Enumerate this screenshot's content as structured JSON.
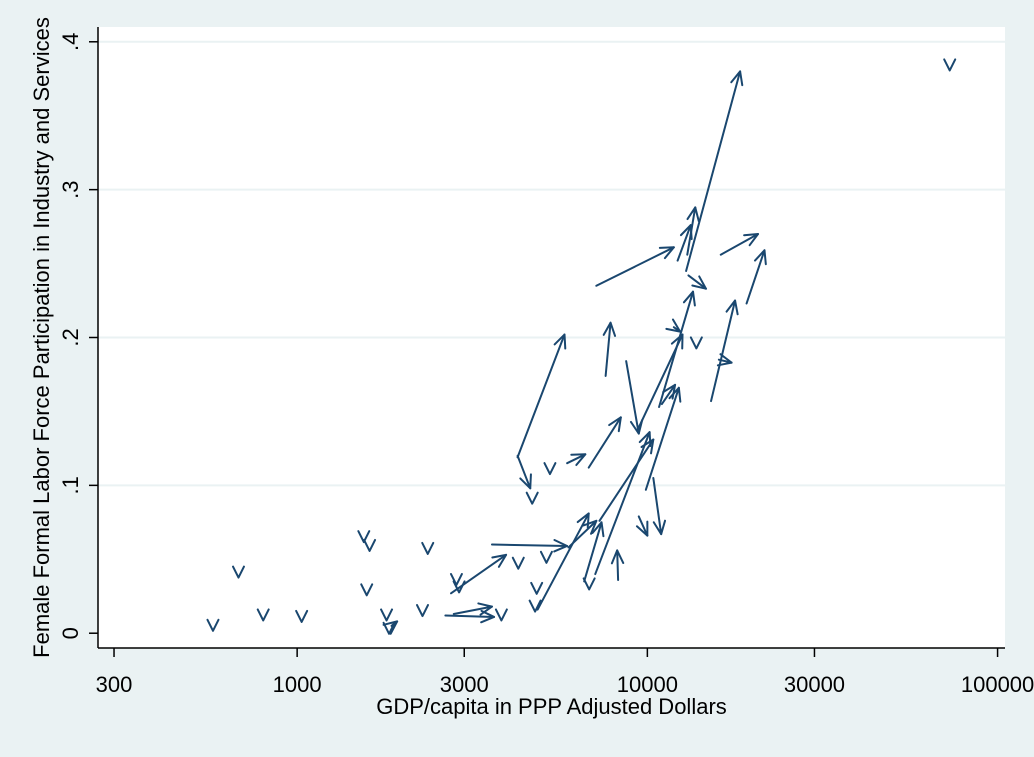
{
  "chart_data": {
    "type": "scatter",
    "subtype": "arrow-plot",
    "xlabel": "GDP/capita in PPP Adjusted Dollars",
    "ylabel": "Female Formal Labor Force Participation in Industry and Services",
    "x_scale": "log",
    "xlim": [
      270,
      105000
    ],
    "ylim": [
      -0.01,
      0.41
    ],
    "x_ticks": [
      300,
      1000,
      3000,
      10000,
      30000,
      100000
    ],
    "x_tick_labels": [
      "300",
      "1000",
      "3000",
      "10000",
      "30000",
      "100000"
    ],
    "y_ticks": [
      0,
      0.1,
      0.2,
      0.3,
      0.4
    ],
    "y_tick_labels": [
      "0",
      ".1",
      ".2",
      ".3",
      ".4"
    ],
    "grid": "horizontal",
    "legend": "none",
    "colors": {
      "series": "#1a476f",
      "plot_background": "#ffffff",
      "outer_background": "#eaf2f3",
      "gridline": "#eaf2f3"
    },
    "arrows": [
      {
        "x0": 12900,
        "y0": 0.245,
        "x1": 18400,
        "y1": 0.38
      },
      {
        "x0": 7150,
        "y0": 0.235,
        "x1": 11900,
        "y1": 0.261
      },
      {
        "x0": 12200,
        "y0": 0.252,
        "x1": 13300,
        "y1": 0.276
      },
      {
        "x0": 13000,
        "y0": 0.256,
        "x1": 13700,
        "y1": 0.288
      },
      {
        "x0": 16200,
        "y0": 0.256,
        "x1": 20700,
        "y1": 0.27
      },
      {
        "x0": 13100,
        "y0": 0.242,
        "x1": 14700,
        "y1": 0.233
      },
      {
        "x0": 19200,
        "y0": 0.223,
        "x1": 21600,
        "y1": 0.259
      },
      {
        "x0": 15200,
        "y0": 0.157,
        "x1": 17800,
        "y1": 0.225
      },
      {
        "x0": 16000,
        "y0": 0.185,
        "x1": 17400,
        "y1": 0.183
      },
      {
        "x0": 7600,
        "y0": 0.174,
        "x1": 7850,
        "y1": 0.21
      },
      {
        "x0": 4260,
        "y0": 0.119,
        "x1": 5800,
        "y1": 0.202
      },
      {
        "x0": 4260,
        "y0": 0.12,
        "x1": 4630,
        "y1": 0.098
      },
      {
        "x0": 8700,
        "y0": 0.184,
        "x1": 9450,
        "y1": 0.135
      },
      {
        "x0": 10800,
        "y0": 0.153,
        "x1": 13500,
        "y1": 0.231
      },
      {
        "x0": 9400,
        "y0": 0.138,
        "x1": 12600,
        "y1": 0.202
      },
      {
        "x0": 6800,
        "y0": 0.112,
        "x1": 8400,
        "y1": 0.146
      },
      {
        "x0": 5900,
        "y0": 0.115,
        "x1": 6650,
        "y1": 0.121
      },
      {
        "x0": 11000,
        "y0": 0.155,
        "x1": 12000,
        "y1": 0.168
      },
      {
        "x0": 11900,
        "y0": 0.207,
        "x1": 12400,
        "y1": 0.204
      },
      {
        "x0": 9900,
        "y0": 0.097,
        "x1": 12300,
        "y1": 0.166
      },
      {
        "x0": 7100,
        "y0": 0.04,
        "x1": 10150,
        "y1": 0.136
      },
      {
        "x0": 7300,
        "y0": 0.076,
        "x1": 10400,
        "y1": 0.131
      },
      {
        "x0": 6600,
        "y0": 0.035,
        "x1": 7400,
        "y1": 0.075
      },
      {
        "x0": 3600,
        "y0": 0.06,
        "x1": 5900,
        "y1": 0.059
      },
      {
        "x0": 2750,
        "y0": 0.027,
        "x1": 3950,
        "y1": 0.053
      },
      {
        "x0": 4860,
        "y0": 0.016,
        "x1": 6800,
        "y1": 0.081
      },
      {
        "x0": 5950,
        "y0": 0.058,
        "x1": 7150,
        "y1": 0.076
      },
      {
        "x0": 2650,
        "y0": 0.012,
        "x1": 3650,
        "y1": 0.011
      },
      {
        "x0": 2800,
        "y0": 0.013,
        "x1": 3600,
        "y1": 0.018
      },
      {
        "x0": 10400,
        "y0": 0.105,
        "x1": 10950,
        "y1": 0.067
      },
      {
        "x0": 9450,
        "y0": 0.079,
        "x1": 10000,
        "y1": 0.066
      },
      {
        "x0": 8250,
        "y0": 0.036,
        "x1": 8200,
        "y1": 0.056
      },
      {
        "x0": 1860,
        "y0": 0.005,
        "x1": 1930,
        "y1": 0.008
      }
    ],
    "markers": [
      {
        "x": 575,
        "y": 0.005
      },
      {
        "x": 680,
        "y": 0.041
      },
      {
        "x": 800,
        "y": 0.012
      },
      {
        "x": 1030,
        "y": 0.011
      },
      {
        "x": 1550,
        "y": 0.065
      },
      {
        "x": 1610,
        "y": 0.059
      },
      {
        "x": 1580,
        "y": 0.029
      },
      {
        "x": 1800,
        "y": 0.012
      },
      {
        "x": 1830,
        "y": 0.003
      },
      {
        "x": 2280,
        "y": 0.015
      },
      {
        "x": 2360,
        "y": 0.057
      },
      {
        "x": 2850,
        "y": 0.036
      },
      {
        "x": 2900,
        "y": 0.031
      },
      {
        "x": 3830,
        "y": 0.012
      },
      {
        "x": 4280,
        "y": 0.047
      },
      {
        "x": 4690,
        "y": 0.091
      },
      {
        "x": 4780,
        "y": 0.018
      },
      {
        "x": 4830,
        "y": 0.03
      },
      {
        "x": 5150,
        "y": 0.051
      },
      {
        "x": 5270,
        "y": 0.111
      },
      {
        "x": 6820,
        "y": 0.033
      },
      {
        "x": 13800,
        "y": 0.196
      },
      {
        "x": 73000,
        "y": 0.384
      }
    ]
  }
}
